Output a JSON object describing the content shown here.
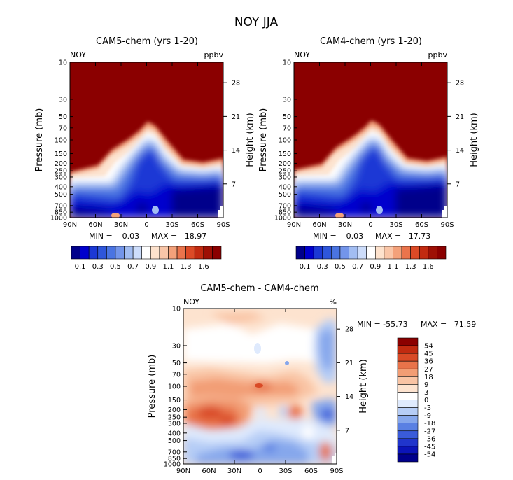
{
  "title": "NOY JJA",
  "colors": {
    "dark_red": "#8b0000",
    "neg": [
      "#00008b",
      "#0000cd",
      "#1e3fd8",
      "#3a66e0",
      "#6a8ee8",
      "#a6c1f2",
      "#cfe0fb"
    ],
    "pos": [
      "#ffffff",
      "#fde3cf",
      "#f9c9ae",
      "#f4a67f",
      "#ec7a52",
      "#e0522c",
      "#c92e12",
      "#a11205",
      "#8b0000"
    ],
    "panel_levels": [
      "#00008b",
      "#0000cd",
      "#1b38d5",
      "#2e56db",
      "#4a74e2",
      "#7395ea",
      "#a2bdf2",
      "#cdddfb",
      "#ffffff",
      "#fde2cd",
      "#f9c6a8",
      "#f3a17a",
      "#ea744c",
      "#dc4a26",
      "#c22a10",
      "#9e1005",
      "#8b0000"
    ],
    "diff_levels": [
      "#00008b",
      "#0b14b8",
      "#2035cc",
      "#3a5bd9",
      "#5a80e3",
      "#86a7ec",
      "#b6cdf6",
      "#dfeafd",
      "#ffffff",
      "#fde3cf",
      "#f9c4a4",
      "#f29d74",
      "#e8734a",
      "#d94a26",
      "#c12a10",
      "#8b0000"
    ]
  },
  "chart_data": [
    {
      "type": "contour",
      "title": "CAM5-chem (yrs 1-20)",
      "variable": "NOY",
      "units": "ppbv",
      "ylabel": "Pressure (mb)",
      "ylabel_right": "Height (km)",
      "x_ticks": [
        "90N",
        "60N",
        "30N",
        "0",
        "30S",
        "60S",
        "90S"
      ],
      "x_tick_values": [
        90,
        60,
        30,
        0,
        -30,
        -60,
        -90
      ],
      "xlim": [
        90,
        -90
      ],
      "y_ticks": [
        "10",
        "30",
        "50",
        "70",
        "100",
        "150",
        "200",
        "250",
        "300",
        "400",
        "500",
        "700",
        "850",
        "1000"
      ],
      "y_tick_values": [
        10,
        30,
        50,
        70,
        100,
        150,
        200,
        250,
        300,
        400,
        500,
        700,
        850,
        1000
      ],
      "ylim": [
        10,
        1000
      ],
      "y_scale": "log",
      "height_ticks": [
        "28",
        "21",
        "14",
        "7"
      ],
      "height_tick_values": [
        28,
        21,
        14,
        7
      ],
      "min_text": "MIN =    0.03",
      "max_text": "MAX =   18.97",
      "min": 0.03,
      "max": 18.97,
      "colorbar_labels": [
        "0.1",
        "0.3",
        "0.5",
        "0.7",
        "0.9",
        "1.1",
        "1.3",
        "1.6"
      ],
      "colorbar_levels": [
        0.1,
        0.2,
        0.3,
        0.4,
        0.5,
        0.6,
        0.7,
        0.8,
        0.9,
        1.0,
        1.1,
        1.2,
        1.3,
        1.4,
        1.5,
        1.6
      ]
    },
    {
      "type": "contour",
      "title": "CAM4-chem (yrs 1-20)",
      "variable": "NOY",
      "units": "ppbv",
      "ylabel": "Pressure (mb)",
      "ylabel_right": "Height (km)",
      "x_ticks": [
        "90N",
        "60N",
        "30N",
        "0",
        "30S",
        "60S",
        "90S"
      ],
      "x_tick_values": [
        90,
        60,
        30,
        0,
        -30,
        -60,
        -90
      ],
      "xlim": [
        90,
        -90
      ],
      "y_ticks": [
        "10",
        "30",
        "50",
        "70",
        "100",
        "150",
        "200",
        "250",
        "300",
        "400",
        "500",
        "700",
        "850",
        "1000"
      ],
      "y_tick_values": [
        10,
        30,
        50,
        70,
        100,
        150,
        200,
        250,
        300,
        400,
        500,
        700,
        850,
        1000
      ],
      "ylim": [
        10,
        1000
      ],
      "y_scale": "log",
      "height_ticks": [
        "28",
        "21",
        "14",
        "7"
      ],
      "height_tick_values": [
        28,
        21,
        14,
        7
      ],
      "min_text": "MIN =    0.03",
      "max_text": "MAX =   17.73",
      "min": 0.03,
      "max": 17.73,
      "colorbar_labels": [
        "0.1",
        "0.3",
        "0.5",
        "0.7",
        "0.9",
        "1.1",
        "1.3",
        "1.6"
      ],
      "colorbar_levels": [
        0.1,
        0.2,
        0.3,
        0.4,
        0.5,
        0.6,
        0.7,
        0.8,
        0.9,
        1.0,
        1.1,
        1.2,
        1.3,
        1.4,
        1.5,
        1.6
      ]
    },
    {
      "type": "contour",
      "title": "CAM5-chem - CAM4-chem",
      "variable": "NOY",
      "units": "%",
      "ylabel": "Pressure (mb)",
      "ylabel_right": "Height (km)",
      "x_ticks": [
        "90N",
        "60N",
        "30N",
        "0",
        "30S",
        "60S",
        "90S"
      ],
      "x_tick_values": [
        90,
        60,
        30,
        0,
        -30,
        -60,
        -90
      ],
      "xlim": [
        90,
        -90
      ],
      "y_ticks": [
        "10",
        "30",
        "50",
        "70",
        "100",
        "150",
        "200",
        "250",
        "300",
        "400",
        "500",
        "700",
        "850",
        "1000"
      ],
      "y_tick_values": [
        10,
        30,
        50,
        70,
        100,
        150,
        200,
        250,
        300,
        400,
        500,
        700,
        850,
        1000
      ],
      "ylim": [
        10,
        1000
      ],
      "y_scale": "log",
      "height_ticks": [
        "28",
        "21",
        "14",
        "7"
      ],
      "height_tick_values": [
        28,
        21,
        14,
        7
      ],
      "min_text": "MIN = -55.73",
      "max_text": "MAX =   71.59",
      "min": -55.73,
      "max": 71.59,
      "colorbar_labels": [
        "54",
        "45",
        "36",
        "27",
        "18",
        "9",
        "3",
        "0",
        "-3",
        "-9",
        "-18",
        "-27",
        "-36",
        "-45",
        "-54"
      ],
      "colorbar_levels": [
        54,
        45,
        36,
        27,
        18,
        9,
        3,
        0,
        -3,
        -9,
        -18,
        -27,
        -36,
        -45,
        -54
      ]
    }
  ]
}
